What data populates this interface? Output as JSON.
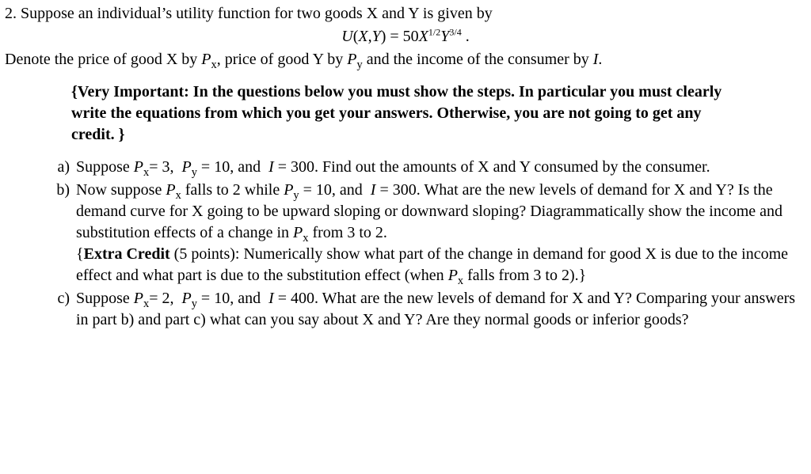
{
  "colors": {
    "text": "#000000",
    "background": "#ffffff"
  },
  "typography": {
    "family": "Times New Roman",
    "size_pt": 15,
    "line_height": 1.35
  },
  "question_number": "2.",
  "intro_line1": "Suppose an individual’s utility function for two goods X and Y is given by",
  "utility_function_html": "<span class='math-i'>U</span>(<span class='math-i'>X</span>,<span class='math-i'>Y</span>) = 50<span class='math-i'>X</span><span class='sup'>1/2</span><span class='math-i'>Y</span><span class='sup'>3/4</span> .",
  "intro_line2_html": "Denote the price of good X by <span class='math-i'>P</span><span class='sub'>x</span>, price of good Y by <span class='math-i'>P</span><span class='sub'>y</span> and the income of the consumer by <span class='math-i'>I</span>.",
  "important_html": "{<b>Very Important: In the questions below you must show the steps. In particular you must clearly write the equations from which you get your answers. Otherwise, you are not going to get any credit.</b> }",
  "parts": [
    {
      "marker": "a)",
      "html": "Suppose <span class='math-i'>P</span><span class='sub'>x</span>= 3,&nbsp; <span class='math-i'>P</span><span class='sub'>y</span> = 10, and&nbsp; <span class='math-i'>I</span> = 300. Find out the amounts of X and Y consumed by the consumer."
    },
    {
      "marker": "b)",
      "html": "Now suppose <span class='math-i'>P</span><span class='sub'>x</span> falls to 2 while <span class='math-i'>P</span><span class='sub'>y</span> = 10, and&nbsp; <span class='math-i'>I</span> = 300. What are the new levels of demand for X and Y? Is the demand curve for X going to be upward sloping or downward sloping? Diagrammatically show the income and substitution effects of a change in <span class='math-i'>P</span><span class='sub'>x</span> from 3 to 2.<br>{<b>Extra Credit</b> (5 points): Numerically show what part of the change in demand for good X is due to the income effect and what part is due to the substitution effect (when <span class='math-i'>P</span><span class='sub'>x</span> falls from 3 to 2).}"
    },
    {
      "marker": "c)",
      "html": "Suppose <span class='math-i'>P</span><span class='sub'>x</span>= 2,&nbsp; <span class='math-i'>P</span><span class='sub'>y</span> = 10, and&nbsp; <span class='math-i'>I</span> = 400. What are the new levels of demand for X and Y? Comparing your answers in part b) and part c) what can you say about X and Y? Are they normal goods or inferior goods?"
    }
  ]
}
